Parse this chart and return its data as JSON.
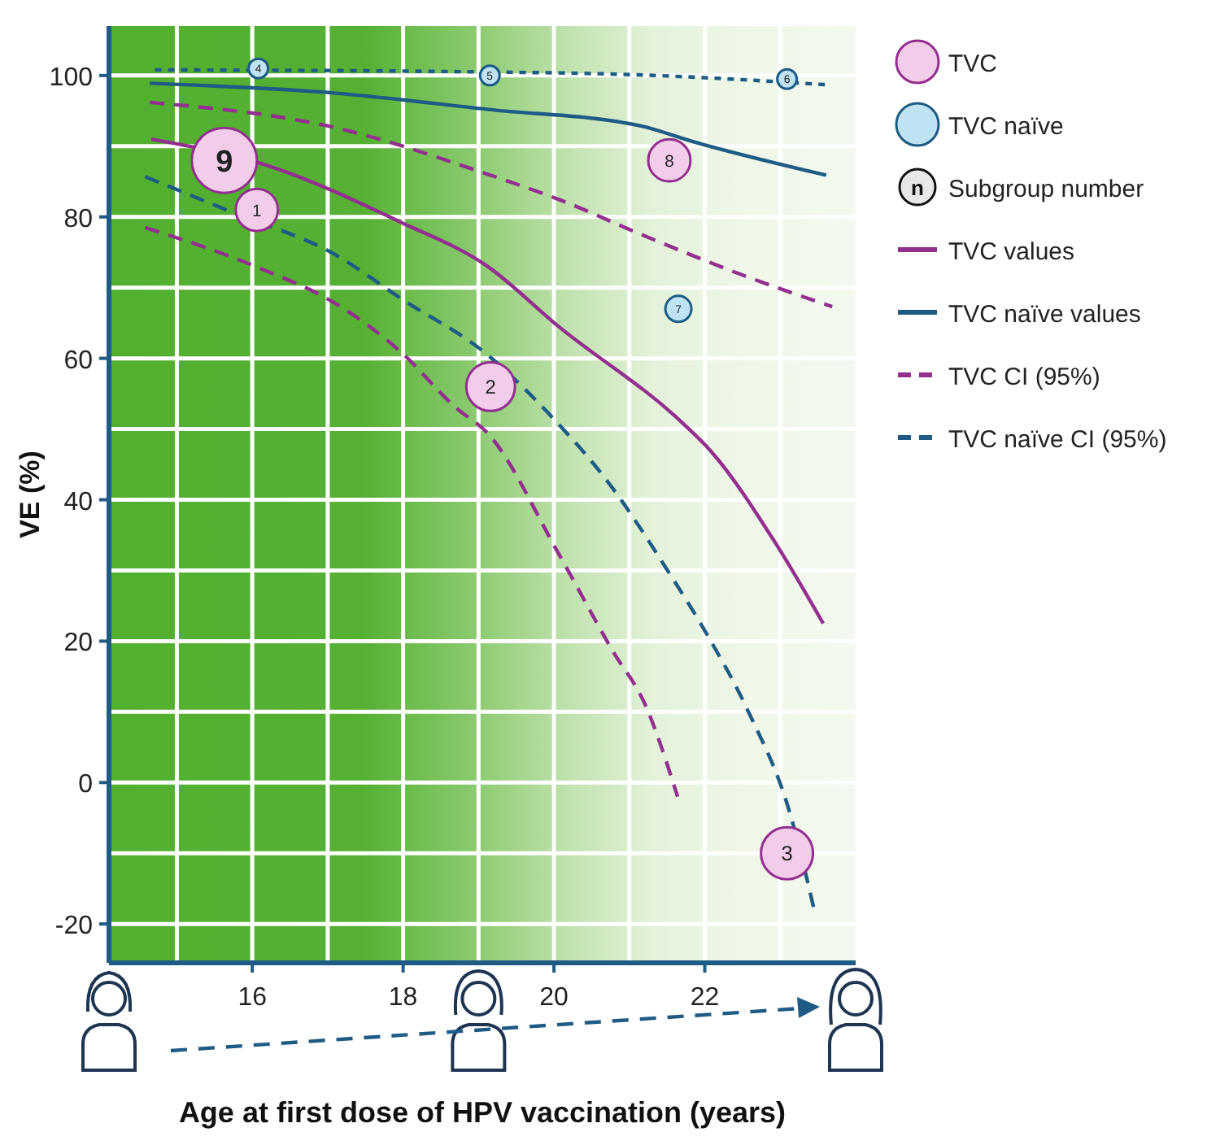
{
  "chart_data": {
    "type": "bubble",
    "xlabel": "Age at first dose of HPV vaccination (years)",
    "ylabel": "VE (%)",
    "xlim": [
      14.1,
      24
    ],
    "xticks": [
      {
        "value": 15,
        "label": null
      },
      16,
      {
        "value": 17,
        "label": null
      },
      18,
      {
        "value": 19,
        "label": null
      },
      20,
      {
        "value": 21,
        "label": null
      },
      22,
      {
        "value": 23,
        "label": null
      }
    ],
    "ylim": [
      -25.5,
      107
    ],
    "yticks": [
      -20,
      {
        "value": -10,
        "label": null
      },
      0,
      {
        "value": 10,
        "label": null
      },
      20,
      {
        "value": 30,
        "label": null
      },
      40,
      {
        "value": 50,
        "label": null
      },
      60,
      {
        "value": 70,
        "label": null
      },
      80,
      {
        "value": 90,
        "label": null
      },
      100
    ],
    "grid": true,
    "legend": "right",
    "annotations": [
      "n",
      "Subgroup number",
      {
        "text": "1",
        "x": 16.06,
        "y": 81
      },
      {
        "text": "2",
        "x": 19.16,
        "y": 56
      },
      {
        "text": "3",
        "x": 23.09,
        "y": -10
      },
      {
        "text": "8",
        "x": 21.53,
        "y": 88
      },
      {
        "text": "9",
        "x": 15.63,
        "y": 88
      },
      {
        "text": "4",
        "x": 16.08,
        "y": 101
      },
      {
        "text": "5",
        "x": 19.15,
        "y": 100
      },
      {
        "text": "6",
        "x": 23.09,
        "y": 99.5
      },
      {
        "text": "7",
        "x": 21.65,
        "y": 67
      }
    ],
    "series": [
      {
        "name": "TVC",
        "color": "#932f8f",
        "x": [
          16.06,
          19.16,
          23.09,
          21.53,
          15.63
        ],
        "values": [
          81,
          56,
          -10,
          88,
          88
        ],
        "sizes": [
          0.42,
          0.56,
          0.64,
          0.42,
          1
        ]
      },
      {
        "name": "TVC naïve",
        "color": "#1e5b85",
        "x": [
          16.08,
          19.15,
          23.09,
          21.65
        ],
        "values": [
          101,
          100,
          99.5,
          67
        ],
        "sizes": [
          0.09,
          0.09,
          0.09,
          0.16
        ]
      },
      {
        "name": "TVC values",
        "type": "line",
        "line_style": "solid",
        "color": "#932f8f",
        "x": [
          14.66,
          16.1,
          17.98,
          19.12,
          20.05,
          21.71,
          22.07,
          22.93,
          23.57
        ],
        "values": [
          91,
          87.6,
          79.2,
          73,
          64.6,
          50.8,
          47,
          34,
          22.5
        ]
      },
      {
        "name": "TVC naïve values",
        "type": "line",
        "line_style": "solid",
        "color": "#1e5b85",
        "x": [
          14.64,
          17.11,
          19.13,
          21.14,
          21.86,
          23.61
        ],
        "values": [
          98.9,
          97.5,
          95.2,
          92.9,
          90.6,
          85.9
        ]
      },
      {
        "name": "TVC CI (95%)",
        "type": "line",
        "line_style": "dashed",
        "color": "#932f8f",
        "x": [
          14.64,
          17.11,
          19.13,
          20.13,
          21.14,
          22.57,
          23.69
        ],
        "values": [
          96.2,
          92.6,
          86,
          82.2,
          77.6,
          71.5,
          67.3
        ]
      },
      {
        "type": "line",
        "line_style": "dashed",
        "color": "#932f8f",
        "x": [
          14.58,
          16.04,
          17.11,
          17.98,
          18.69,
          19.13,
          20.06,
          20.78,
          21.21,
          21.64
        ],
        "values": [
          78.5,
          73,
          67.7,
          60.8,
          53.1,
          49.3,
          32.4,
          18.6,
          11,
          -2
        ]
      },
      {
        "name": "TVC naïve CI (95%)",
        "type": "line",
        "line_style": "dashed",
        "color": "#1e5b85",
        "x": [
          14.58,
          15.7,
          17.11,
          17.98,
          19.13,
          19.92,
          20.78,
          21.5,
          22.07,
          22.57,
          23.15,
          23.45
        ],
        "values": [
          85.7,
          80.8,
          74.6,
          68.4,
          60.4,
          52.3,
          41.6,
          30.1,
          20.2,
          10.2,
          -5.1,
          -18
        ]
      },
      {
        "type": "line",
        "line_style": "dotted",
        "color": "#1e5b85",
        "x": [
          14.71,
          19.15,
          21.1,
          23.61
        ],
        "values": [
          100.8,
          100.5,
          100.1,
          98.7
        ]
      }
    ]
  }
}
